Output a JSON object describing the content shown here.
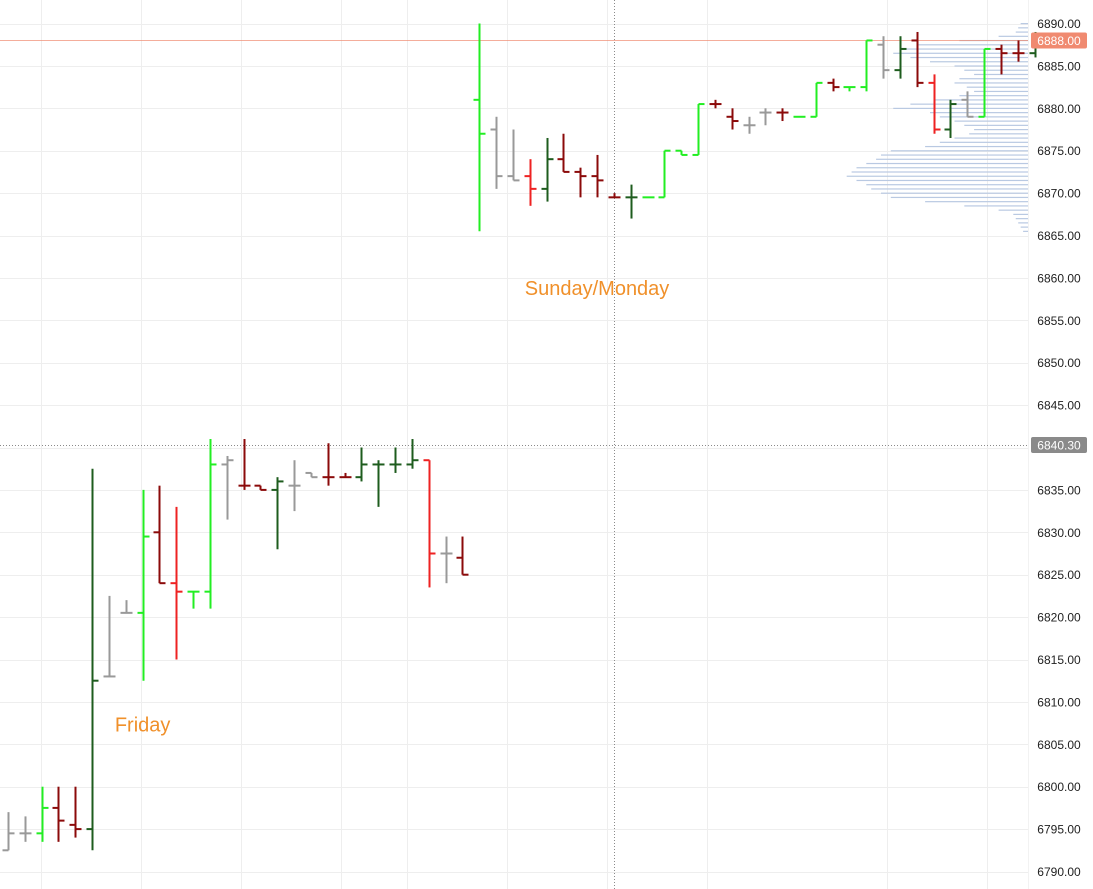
{
  "chart_data": {
    "type": "ohlc",
    "y_axis": {
      "range": [
        6789,
        6891
      ],
      "ticks": [
        "6890.00",
        "6885.00",
        "6880.00",
        "6875.00",
        "6870.00",
        "6865.00",
        "6860.00",
        "6855.00",
        "6850.00",
        "6845.00",
        "6840.00",
        "6835.00",
        "6830.00",
        "6825.00",
        "6820.00",
        "6815.00",
        "6810.00",
        "6805.00",
        "6800.00",
        "6795.00",
        "6790.00"
      ]
    },
    "grid": true,
    "price_markers": [
      {
        "value": 6888.0,
        "label": "6888.00",
        "color": "#f08a70",
        "line": "solid"
      },
      {
        "value": 6840.3,
        "label": "6840.30",
        "color": "#8a8a8a",
        "line": "dotted"
      }
    ],
    "crosshair": {
      "bar_index": 36
    },
    "annotations": [
      {
        "text": "Friday",
        "bar_index": 8,
        "y": 6806.5
      },
      {
        "text": "Sunday/Monday",
        "bar_index": 35,
        "y": 6858
      }
    ],
    "colors": {
      "up": "#22ee22",
      "down": "#ee2222",
      "up_dark": "#1e5c1e",
      "down_dark": "#8b0a0a",
      "neutral": "#999999",
      "profile": "#b9c9e2",
      "grid": "#eeeeee",
      "text": "#222222"
    },
    "bars": [
      {
        "o": 6792.5,
        "h": 6797.0,
        "l": 6792.5,
        "c": 6794.5,
        "color": "neutral"
      },
      {
        "o": 6794.5,
        "h": 6796.5,
        "l": 6793.5,
        "c": 6794.5,
        "color": "neutral"
      },
      {
        "o": 6794.5,
        "h": 6800.0,
        "l": 6793.5,
        "c": 6797.5,
        "color": "up"
      },
      {
        "o": 6797.5,
        "h": 6800.0,
        "l": 6793.5,
        "c": 6796.0,
        "color": "down_dark"
      },
      {
        "o": 6795.5,
        "h": 6800.0,
        "l": 6794.0,
        "c": 6795.0,
        "color": "down_dark"
      },
      {
        "o": 6795.0,
        "h": 6837.5,
        "l": 6792.5,
        "c": 6812.5,
        "color": "up_dark"
      },
      {
        "o": 6813.0,
        "h": 6822.5,
        "l": 6813.0,
        "c": 6813.0,
        "color": "neutral"
      },
      {
        "o": 6820.5,
        "h": 6822.0,
        "l": 6820.5,
        "c": 6820.5,
        "color": "neutral"
      },
      {
        "o": 6820.5,
        "h": 6835.0,
        "l": 6812.5,
        "c": 6829.5,
        "color": "up"
      },
      {
        "o": 6830.0,
        "h": 6835.5,
        "l": 6824.0,
        "c": 6824.0,
        "color": "down_dark"
      },
      {
        "o": 6824.0,
        "h": 6833.0,
        "l": 6815.0,
        "c": 6823.0,
        "color": "down"
      },
      {
        "o": 6823.0,
        "h": 6823.0,
        "l": 6821.0,
        "c": 6823.0,
        "color": "up"
      },
      {
        "o": 6823.0,
        "h": 6841.0,
        "l": 6821.0,
        "c": 6838.0,
        "color": "up"
      },
      {
        "o": 6838.0,
        "h": 6839.0,
        "l": 6831.5,
        "c": 6838.5,
        "color": "neutral"
      },
      {
        "o": 6835.5,
        "h": 6841.0,
        "l": 6835.0,
        "c": 6835.5,
        "color": "down_dark"
      },
      {
        "o": 6835.5,
        "h": 6835.5,
        "l": 6835.0,
        "c": 6835.0,
        "color": "down_dark"
      },
      {
        "o": 6835.0,
        "h": 6836.5,
        "l": 6828.0,
        "c": 6836.0,
        "color": "up_dark"
      },
      {
        "o": 6835.5,
        "h": 6838.5,
        "l": 6832.5,
        "c": 6835.5,
        "color": "neutral"
      },
      {
        "o": 6837.0,
        "h": 6837.0,
        "l": 6836.5,
        "c": 6836.5,
        "color": "neutral"
      },
      {
        "o": 6836.5,
        "h": 6840.5,
        "l": 6835.5,
        "c": 6836.5,
        "color": "down_dark"
      },
      {
        "o": 6836.5,
        "h": 6837.0,
        "l": 6836.5,
        "c": 6836.5,
        "color": "down_dark"
      },
      {
        "o": 6836.5,
        "h": 6840.0,
        "l": 6836.0,
        "c": 6838.0,
        "color": "up_dark"
      },
      {
        "o": 6838.0,
        "h": 6838.5,
        "l": 6833.0,
        "c": 6838.0,
        "color": "up_dark"
      },
      {
        "o": 6838.0,
        "h": 6840.0,
        "l": 6837.0,
        "c": 6838.0,
        "color": "up_dark"
      },
      {
        "o": 6838.0,
        "h": 6841.0,
        "l": 6837.5,
        "c": 6838.5,
        "color": "up_dark"
      },
      {
        "o": 6838.5,
        "h": 6838.5,
        "l": 6823.5,
        "c": 6827.5,
        "color": "down"
      },
      {
        "o": 6827.5,
        "h": 6829.5,
        "l": 6824.0,
        "c": 6827.5,
        "color": "neutral"
      },
      {
        "o": 6827.0,
        "h": 6829.5,
        "l": 6825.0,
        "c": 6825.0,
        "color": "down_dark"
      },
      {
        "o": 6881.0,
        "h": 6890.0,
        "l": 6865.5,
        "c": 6877.0,
        "color": "up"
      },
      {
        "o": 6877.5,
        "h": 6879.0,
        "l": 6870.5,
        "c": 6872.0,
        "color": "neutral"
      },
      {
        "o": 6872.0,
        "h": 6877.5,
        "l": 6871.5,
        "c": 6871.5,
        "color": "neutral"
      },
      {
        "o": 6872.0,
        "h": 6874.0,
        "l": 6868.5,
        "c": 6870.5,
        "color": "down"
      },
      {
        "o": 6870.5,
        "h": 6876.5,
        "l": 6869.0,
        "c": 6874.0,
        "color": "up_dark"
      },
      {
        "o": 6874.0,
        "h": 6877.0,
        "l": 6872.5,
        "c": 6872.5,
        "color": "down_dark"
      },
      {
        "o": 6872.5,
        "h": 6873.0,
        "l": 6869.5,
        "c": 6872.0,
        "color": "down_dark"
      },
      {
        "o": 6872.0,
        "h": 6874.5,
        "l": 6869.5,
        "c": 6871.5,
        "color": "down_dark"
      },
      {
        "o": 6869.5,
        "h": 6870.0,
        "l": 6869.5,
        "c": 6869.5,
        "color": "down_dark"
      },
      {
        "o": 6869.5,
        "h": 6871.0,
        "l": 6867.0,
        "c": 6869.5,
        "color": "up_dark"
      },
      {
        "o": 6869.5,
        "h": 6869.5,
        "l": 6869.5,
        "c": 6869.5,
        "color": "up"
      },
      {
        "o": 6869.5,
        "h": 6875.0,
        "l": 6869.5,
        "c": 6875.0,
        "color": "up"
      },
      {
        "o": 6875.0,
        "h": 6875.0,
        "l": 6874.5,
        "c": 6874.5,
        "color": "up"
      },
      {
        "o": 6874.5,
        "h": 6880.5,
        "l": 6874.5,
        "c": 6880.5,
        "color": "up"
      },
      {
        "o": 6880.5,
        "h": 6881.0,
        "l": 6880.0,
        "c": 6880.5,
        "color": "down_dark"
      },
      {
        "o": 6879.0,
        "h": 6880.0,
        "l": 6877.5,
        "c": 6878.5,
        "color": "down_dark"
      },
      {
        "o": 6878.0,
        "h": 6879.0,
        "l": 6877.0,
        "c": 6878.0,
        "color": "neutral"
      },
      {
        "o": 6879.5,
        "h": 6880.0,
        "l": 6878.0,
        "c": 6879.5,
        "color": "neutral"
      },
      {
        "o": 6879.5,
        "h": 6880.0,
        "l": 6878.5,
        "c": 6879.5,
        "color": "down_dark"
      },
      {
        "o": 6879.0,
        "h": 6879.0,
        "l": 6879.0,
        "c": 6879.0,
        "color": "up"
      },
      {
        "o": 6879.0,
        "h": 6883.0,
        "l": 6879.0,
        "c": 6883.0,
        "color": "up"
      },
      {
        "o": 6883.0,
        "h": 6883.5,
        "l": 6882.0,
        "c": 6882.5,
        "color": "down_dark"
      },
      {
        "o": 6882.5,
        "h": 6882.5,
        "l": 6882.0,
        "c": 6882.5,
        "color": "up"
      },
      {
        "o": 6882.5,
        "h": 6888.0,
        "l": 6882.0,
        "c": 6888.0,
        "color": "up"
      },
      {
        "o": 6887.5,
        "h": 6888.5,
        "l": 6883.5,
        "c": 6884.5,
        "color": "neutral"
      },
      {
        "o": 6884.5,
        "h": 6888.5,
        "l": 6883.5,
        "c": 6887.0,
        "color": "up_dark"
      },
      {
        "o": 6888.0,
        "h": 6889.0,
        "l": 6882.5,
        "c": 6883.0,
        "color": "down_dark"
      },
      {
        "o": 6883.0,
        "h": 6884.0,
        "l": 6877.0,
        "c": 6877.5,
        "color": "down"
      },
      {
        "o": 6877.5,
        "h": 6881.0,
        "l": 6876.5,
        "c": 6880.5,
        "color": "up_dark"
      },
      {
        "o": 6881.0,
        "h": 6882.0,
        "l": 6879.0,
        "c": 6879.0,
        "color": "neutral"
      },
      {
        "o": 6879.0,
        "h": 6887.0,
        "l": 6879.0,
        "c": 6887.0,
        "color": "up"
      },
      {
        "o": 6887.0,
        "h": 6887.5,
        "l": 6884.0,
        "c": 6886.5,
        "color": "down_dark"
      },
      {
        "o": 6886.5,
        "h": 6888.0,
        "l": 6885.5,
        "c": 6886.5,
        "color": "down_dark"
      },
      {
        "o": 6886.5,
        "h": 6889.0,
        "l": 6886.0,
        "c": 6888.0,
        "color": "up_dark"
      }
    ],
    "volume_profile": [
      {
        "price": 6890.0,
        "size": 0.03
      },
      {
        "price": 6889.5,
        "size": 0.04
      },
      {
        "price": 6889.0,
        "size": 0.05
      },
      {
        "price": 6888.5,
        "size": 0.12
      },
      {
        "price": 6888.0,
        "size": 0.28
      },
      {
        "price": 6887.5,
        "size": 0.45
      },
      {
        "price": 6887.0,
        "size": 0.52
      },
      {
        "price": 6886.5,
        "size": 0.55
      },
      {
        "price": 6886.0,
        "size": 0.48
      },
      {
        "price": 6885.5,
        "size": 0.4
      },
      {
        "price": 6885.0,
        "size": 0.3
      },
      {
        "price": 6884.5,
        "size": 0.26
      },
      {
        "price": 6884.0,
        "size": 0.22
      },
      {
        "price": 6883.5,
        "size": 0.28
      },
      {
        "price": 6883.0,
        "size": 0.3
      },
      {
        "price": 6882.5,
        "size": 0.25
      },
      {
        "price": 6882.0,
        "size": 0.22
      },
      {
        "price": 6881.5,
        "size": 0.28
      },
      {
        "price": 6881.0,
        "size": 0.38
      },
      {
        "price": 6880.5,
        "size": 0.48
      },
      {
        "price": 6880.0,
        "size": 0.55
      },
      {
        "price": 6879.5,
        "size": 0.4
      },
      {
        "price": 6879.0,
        "size": 0.36
      },
      {
        "price": 6878.5,
        "size": 0.3
      },
      {
        "price": 6878.0,
        "size": 0.26
      },
      {
        "price": 6877.5,
        "size": 0.22
      },
      {
        "price": 6877.0,
        "size": 0.24
      },
      {
        "price": 6876.5,
        "size": 0.3
      },
      {
        "price": 6876.0,
        "size": 0.36
      },
      {
        "price": 6875.5,
        "size": 0.42
      },
      {
        "price": 6875.0,
        "size": 0.56
      },
      {
        "price": 6874.5,
        "size": 0.6
      },
      {
        "price": 6874.0,
        "size": 0.62
      },
      {
        "price": 6873.5,
        "size": 0.66
      },
      {
        "price": 6873.0,
        "size": 0.7
      },
      {
        "price": 6872.5,
        "size": 0.72
      },
      {
        "price": 6872.0,
        "size": 0.74
      },
      {
        "price": 6871.5,
        "size": 0.7
      },
      {
        "price": 6871.0,
        "size": 0.66
      },
      {
        "price": 6870.5,
        "size": 0.64
      },
      {
        "price": 6870.0,
        "size": 0.6
      },
      {
        "price": 6869.5,
        "size": 0.56
      },
      {
        "price": 6869.0,
        "size": 0.42
      },
      {
        "price": 6868.5,
        "size": 0.26
      },
      {
        "price": 6868.0,
        "size": 0.12
      },
      {
        "price": 6867.5,
        "size": 0.06
      },
      {
        "price": 6867.0,
        "size": 0.05
      },
      {
        "price": 6866.5,
        "size": 0.04
      },
      {
        "price": 6866.0,
        "size": 0.03
      },
      {
        "price": 6865.5,
        "size": 0.02
      }
    ]
  }
}
